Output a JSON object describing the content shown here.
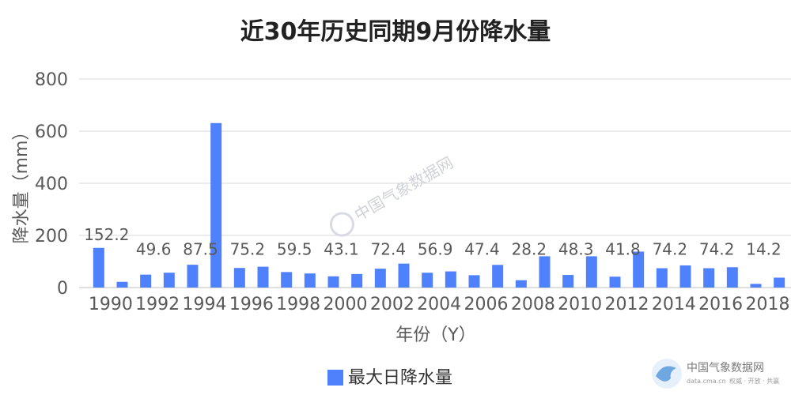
{
  "chart_data": {
    "type": "bar",
    "title": "近30年历史同期9月份降水量",
    "xlabel": "年份（Y）",
    "ylabel": "降水量（mm）",
    "ylim": [
      0,
      800
    ],
    "yticks": [
      0,
      200,
      400,
      600,
      800
    ],
    "grid": true,
    "legend_position": "bottom",
    "categories": [
      "1990",
      "1991",
      "1992",
      "1993",
      "1994",
      "1995",
      "1996",
      "1997",
      "1998",
      "1999",
      "2000",
      "2001",
      "2002",
      "2003",
      "2004",
      "2005",
      "2006",
      "2007",
      "2008",
      "2009",
      "2010",
      "2011",
      "2012",
      "2013",
      "2014",
      "2015",
      "2016",
      "2017",
      "2018",
      "2019"
    ],
    "x_tick_labels": [
      "1990",
      "1992",
      "1994",
      "1996",
      "1998",
      "2000",
      "2002",
      "2004",
      "2006",
      "2008",
      "2010",
      "2012",
      "2014",
      "2016",
      "2018"
    ],
    "series": [
      {
        "name": "最大日降水量",
        "color": "#4f81fd",
        "values": [
          152.2,
          22,
          49.6,
          57,
          87.5,
          631,
          75.2,
          80,
          59.5,
          54,
          43.1,
          52,
          72.4,
          92,
          56.9,
          62,
          47.4,
          87,
          28.2,
          120,
          48.3,
          120,
          41.8,
          138,
          74.2,
          85,
          74.2,
          78,
          14.2,
          38
        ],
        "data_labels": {
          "0": "152.2",
          "2": "49.6",
          "4": "87.5",
          "6": "75.2",
          "8": "59.5",
          "10": "43.1",
          "12": "72.4",
          "14": "56.9",
          "16": "47.4",
          "18": "28.2",
          "20": "48.3",
          "22": "41.8",
          "24": "74.2",
          "26": "74.2",
          "28": "14.2"
        }
      }
    ]
  },
  "watermark": {
    "center_text": "中国气象数据网",
    "logo_text": "中国气象数据网",
    "logo_url_text": "data.cma.cn",
    "logo_slogan": "权威 · 开放 · 共赢"
  }
}
